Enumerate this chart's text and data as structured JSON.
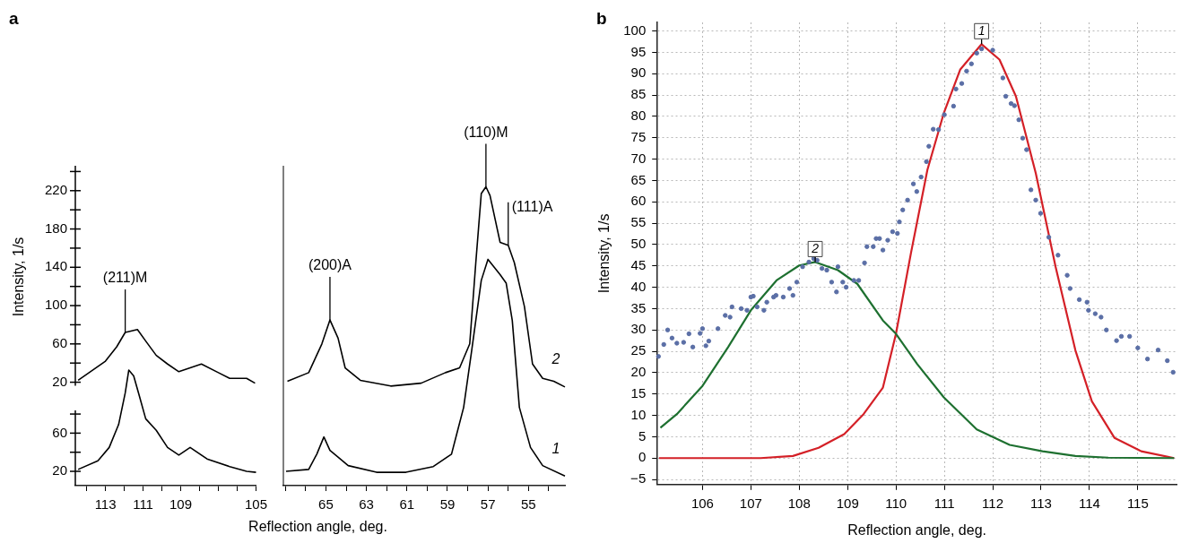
{
  "chart_data": [
    {
      "type": "line",
      "title": "a",
      "xlabel": "Reflection angle, deg.",
      "ylabel": "Intensity, 1/s",
      "xlim": [
        114.6,
        105
      ],
      "xticks": [
        {
          "value": 114,
          "label": null
        },
        113,
        {
          "value": 112,
          "label": null
        },
        111,
        {
          "value": 110,
          "label": null
        },
        109,
        {
          "value": 108,
          "label": null
        },
        {
          "value": 107,
          "label": null
        },
        {
          "value": 106,
          "label": null
        },
        105
      ],
      "ylim": [
        -88,
        246
      ],
      "yticks": [
        20,
        {
          "value": 40,
          "label": null
        },
        60,
        {
          "value": 80,
          "label": null
        },
        100,
        {
          "value": 120,
          "label": null
        },
        140,
        {
          "value": 160,
          "label": null
        },
        180,
        {
          "value": 200,
          "label": null
        },
        220,
        {
          "value": 240,
          "label": null
        }
      ],
      "y2lim": [
        5,
        340
      ],
      "y2ticks": [
        20,
        {
          "value": 40,
          "label": null
        },
        60,
        {
          "value": 80,
          "label": null
        }
      ],
      "series": [
        {
          "color": "#000000",
          "axis": "y2",
          "x": [
            114.45,
            113.4,
            112.8,
            112.3,
            111.95,
            111.76,
            111.5,
            111.2,
            110.86,
            110.3,
            109.7,
            109.1,
            108.5,
            107.6,
            106.4,
            105.5,
            105.0
          ],
          "values": [
            22,
            31,
            45,
            69,
            102,
            126,
            120,
            99,
            75,
            63,
            45,
            37,
            45,
            33,
            25,
            20,
            19
          ]
        },
        {
          "color": "#000000",
          "axis": "y",
          "x": [
            114.45,
            113.87,
            113.0,
            112.4,
            111.95,
            111.3,
            110.86,
            110.3,
            109.7,
            109.1,
            107.9,
            107.0,
            106.4,
            105.5,
            105.05
          ],
          "values": [
            22,
            30,
            42,
            57,
            72,
            75,
            63,
            48,
            39,
            31,
            39,
            30,
            24,
            24,
            19
          ]
        }
      ],
      "annotations": [
        {
          "text": "(211)M",
          "x": 111.95,
          "y": 72
        }
      ]
    },
    {
      "type": "line",
      "tick_labels": "x",
      "xlim": [
        67.1,
        53.2
      ],
      "ylim": [
        -88,
        246
      ],
      "y2lim": [
        5,
        340
      ],
      "xticks": [
        {
          "value": 67,
          "label": null
        },
        {
          "value": 66,
          "label": null
        },
        65,
        {
          "value": 64,
          "label": null
        },
        63,
        {
          "value": 62,
          "label": null
        },
        61,
        {
          "value": 60,
          "label": null
        },
        59,
        {
          "value": 58,
          "label": null
        },
        57,
        {
          "value": 56,
          "label": null
        },
        55,
        {
          "value": 54,
          "label": null
        }
      ],
      "series": [
        {
          "name": "1",
          "color": "#000000",
          "axis": "y2",
          "x": [
            66.97,
            65.85,
            65.45,
            65.1,
            64.8,
            63.9,
            62.5,
            61.05,
            59.7,
            58.8,
            58.2,
            57.8,
            57.33,
            57.0,
            56.4,
            56.1,
            55.8,
            55.45,
            54.9,
            54.3,
            53.2
          ],
          "values": [
            20,
            22,
            38,
            56,
            42,
            26,
            19,
            19,
            25,
            38,
            87,
            147,
            220,
            242,
            226,
            217,
            178,
            87,
            45,
            26,
            15
          ]
        },
        {
          "name": "2",
          "color": "#000000",
          "axis": "y",
          "x": [
            66.9,
            65.85,
            65.2,
            64.8,
            64.4,
            64.05,
            63.3,
            61.8,
            60.3,
            59.1,
            58.4,
            57.9,
            57.6,
            57.33,
            57.1,
            56.9,
            56.4,
            56.0,
            55.7,
            55.2,
            54.8,
            54.3,
            53.75,
            53.2
          ],
          "values": [
            21,
            30,
            60,
            85,
            66,
            35,
            22,
            16,
            19,
            30,
            35,
            60,
            145,
            217,
            224,
            215,
            166,
            163,
            145,
            99,
            39,
            24,
            21,
            15
          ]
        }
      ],
      "annotations": [
        {
          "text": "(200)A",
          "x": 64.8,
          "y": 85
        },
        {
          "text": "(110)M",
          "x": 57.1,
          "y": 224
        },
        {
          "text": "(111)A",
          "x": 56.0,
          "y": 163
        }
      ]
    },
    {
      "type": "line",
      "title": "b",
      "xlabel": "Reflection angle, deg.",
      "ylabel": "Intensity, 1/s",
      "xlim": [
        105.07,
        115.8
      ],
      "xticks": [
        106,
        107,
        108,
        109,
        110,
        111,
        112,
        113,
        114,
        115
      ],
      "ylim": [
        -6.2,
        102
      ],
      "yticks": [
        {
          "value": -5,
          "label": "−5"
        },
        0,
        5,
        10,
        15,
        20,
        25,
        30,
        35,
        40,
        45,
        50,
        55,
        60,
        65,
        70,
        75,
        80,
        85,
        90,
        95,
        100
      ],
      "grid": true,
      "series": [
        {
          "type": "scatter",
          "marker": "circle",
          "color": "#5b6fa6",
          "x": [
            105.09,
            105.2,
            105.28,
            105.37,
            105.47,
            105.61,
            105.72,
            105.8,
            105.95,
            106.0,
            106.07,
            106.13,
            106.32,
            106.47,
            106.57,
            106.61,
            106.8,
            106.92,
            107.0,
            107.05,
            107.13,
            107.27,
            107.33,
            107.47,
            107.52,
            107.67,
            107.8,
            107.87,
            107.95,
            108.07,
            108.2,
            108.3,
            108.37,
            108.47,
            108.57,
            108.67,
            108.77,
            108.8,
            108.9,
            108.97,
            109.13,
            109.23,
            109.35,
            109.4,
            109.53,
            109.59,
            109.66,
            109.73,
            109.83,
            109.93,
            110.03,
            110.07,
            110.14,
            110.24,
            110.36,
            110.43,
            110.52,
            110.63,
            110.68,
            110.77,
            110.88,
            111.0,
            111.19,
            111.24,
            111.36,
            111.46,
            111.56,
            111.67,
            111.77,
            112.0,
            112.21,
            112.27,
            112.38,
            112.45,
            112.54,
            112.62,
            112.7,
            112.79,
            112.89,
            112.99,
            113.16,
            113.35,
            113.54,
            113.6,
            113.79,
            113.95,
            113.98,
            114.12,
            114.24,
            114.35,
            114.56,
            114.66,
            114.83,
            115.0,
            115.2,
            115.42,
            115.61,
            115.73
          ],
          "values": [
            23.8,
            26.6,
            30,
            28.1,
            26.9,
            27.1,
            29.1,
            26,
            29.2,
            30.3,
            26.3,
            27.4,
            30.3,
            33.4,
            33,
            35.4,
            35,
            34.6,
            37.7,
            37.9,
            35.4,
            34.6,
            36.5,
            37.7,
            38.1,
            37.7,
            39.7,
            38.1,
            41.2,
            44.8,
            45.9,
            46.7,
            46.3,
            44.4,
            44,
            41.2,
            38.9,
            44.8,
            41.2,
            40,
            41.6,
            41.6,
            45.7,
            49.5,
            49.5,
            51.4,
            51.4,
            48.7,
            51,
            53,
            52.6,
            55.3,
            58.1,
            60.4,
            64.2,
            62.4,
            65.8,
            69.4,
            73,
            77,
            76.9,
            80.4,
            82.4,
            86.4,
            87.7,
            90.6,
            92.3,
            94.8,
            95.8,
            95.5,
            89,
            84.7,
            83,
            82.5,
            79.2,
            74.9,
            72.2,
            62.8,
            60.4,
            57.3,
            51.7,
            47.5,
            42.8,
            39.7,
            37.1,
            36.5,
            34.6,
            33.8,
            33,
            30,
            27.5,
            28.5,
            28.5,
            25.8,
            23.2,
            25.3,
            22.8,
            20.1
          ]
        },
        {
          "type": "line",
          "color": "#1e7030",
          "x": [
            105.13,
            105.47,
            106.0,
            106.53,
            107.0,
            107.53,
            108.0,
            108.33,
            108.8,
            109.2,
            109.73,
            110.0,
            110.44,
            110.99,
            111.67,
            112.35,
            113.03,
            113.71,
            114.39,
            115.75
          ],
          "values": [
            7.1,
            10.3,
            16.9,
            26,
            34.6,
            41.6,
            45.1,
            45.9,
            44,
            40.8,
            32.2,
            29.1,
            22,
            14.2,
            6.7,
            3.1,
            1.6,
            0.5,
            0.1,
            0
          ]
        },
        {
          "type": "line",
          "color": "#d42027",
          "x": [
            105.1,
            107.2,
            107.87,
            108.4,
            108.93,
            109.33,
            109.73,
            110.0,
            110.31,
            110.65,
            110.99,
            111.33,
            111.77,
            112.14,
            112.48,
            112.89,
            113.3,
            113.71,
            114.05,
            114.52,
            115.07,
            115.75
          ],
          "values": [
            0,
            0,
            0.5,
            2.4,
            5.6,
            10.3,
            16.5,
            29.1,
            48,
            67.5,
            80.8,
            91,
            96.9,
            93.3,
            84.7,
            66.7,
            44.8,
            25.2,
            13.3,
            4.7,
            1.6,
            0
          ]
        }
      ],
      "annotations": [
        {
          "text": "1",
          "x": 111.77,
          "y": 96.9
        },
        {
          "text": "2",
          "x": 108.33,
          "y": 45.9
        }
      ]
    }
  ]
}
